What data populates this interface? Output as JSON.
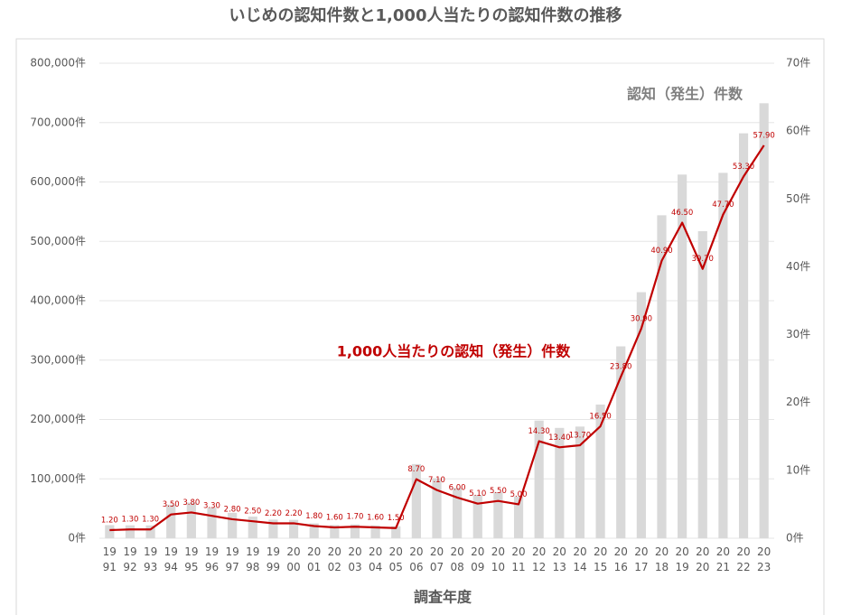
{
  "chart_data": {
    "type": "bar-line",
    "title": "いじめの認知件数と1,000人当たりの認知件数の推移",
    "x_label": "調査年度",
    "categories": [
      "19\n91",
      "19\n92",
      "19\n93",
      "19\n94",
      "19\n95",
      "19\n96",
      "19\n97",
      "19\n98",
      "19\n99",
      "20\n00",
      "20\n01",
      "20\n02",
      "20\n03",
      "20\n04",
      "20\n05",
      "20\n06",
      "20\n07",
      "20\n08",
      "20\n09",
      "20\n10",
      "20\n11",
      "20\n12",
      "20\n13",
      "20\n14",
      "20\n15",
      "20\n16",
      "20\n17",
      "20\n18",
      "20\n19",
      "20\n20",
      "20\n21",
      "20\n22",
      "20\n23"
    ],
    "series": [
      {
        "name": "認知（発生）件数",
        "color": "#d9d9d9",
        "type": "bar",
        "values": [
          22062,
          21718,
          21598,
          56601,
          60096,
          51544,
          42790,
          36396,
          31359,
          30918,
          25037,
          22205,
          23351,
          21671,
          20143,
          124898,
          101097,
          84648,
          72778,
          77630,
          70231,
          198109,
          185803,
          188072,
          225132,
          323143,
          414378,
          543933,
          612496,
          517163,
          615351,
          681948,
          732568
        ]
      },
      {
        "name": "1,000人当たりの認知（発生）件数",
        "color": "#c00000",
        "type": "line",
        "axis": "y2",
        "values": [
          1.2,
          1.3,
          1.3,
          3.5,
          3.8,
          3.3,
          2.8,
          2.5,
          2.2,
          2.2,
          1.8,
          1.6,
          1.7,
          1.6,
          1.5,
          8.7,
          7.1,
          6.0,
          5.1,
          5.5,
          5.0,
          14.3,
          13.4,
          13.7,
          16.5,
          23.8,
          30.9,
          40.9,
          46.5,
          39.7,
          47.7,
          53.3,
          57.9
        ],
        "value_labels": [
          "1.20",
          "1.30",
          "1.30",
          "3.50",
          "3.80",
          "3.30",
          "2.80",
          "2.50",
          "2.20",
          "2.20",
          "1.80",
          "1.60",
          "1.70",
          "1.60",
          "1.50",
          "8.70",
          "7.10",
          "6.00",
          "5.10",
          "5.50",
          "5.00",
          "14.30",
          "13.40",
          "13.70",
          "16.50",
          "23.80",
          "30.90",
          "40.90",
          "46.50",
          "39.70",
          "47.70",
          "53.30",
          "57.90"
        ]
      }
    ],
    "ylim": [
      0,
      800000
    ],
    "yticks": [
      {
        "value": 0,
        "label": "0件"
      },
      {
        "value": 100000,
        "label": "100,000件"
      },
      {
        "value": 200000,
        "label": "200,000件"
      },
      {
        "value": 300000,
        "label": "300,000件"
      },
      {
        "value": 400000,
        "label": "400,000件"
      },
      {
        "value": 500000,
        "label": "500,000件"
      },
      {
        "value": 600000,
        "label": "600,000件"
      },
      {
        "value": 700000,
        "label": "700,000件"
      },
      {
        "value": 800000,
        "label": "800,000件"
      }
    ],
    "y2lim": [
      0,
      70
    ],
    "y2ticks": [
      {
        "value": 0,
        "label": "0件"
      },
      {
        "value": 10,
        "label": "10件"
      },
      {
        "value": 20,
        "label": "20件"
      },
      {
        "value": 30,
        "label": "30件"
      },
      {
        "value": 40,
        "label": "40件"
      },
      {
        "value": 50,
        "label": "50件"
      },
      {
        "value": 60,
        "label": "60件"
      },
      {
        "value": 70,
        "label": "70件"
      }
    ],
    "grid": true
  }
}
